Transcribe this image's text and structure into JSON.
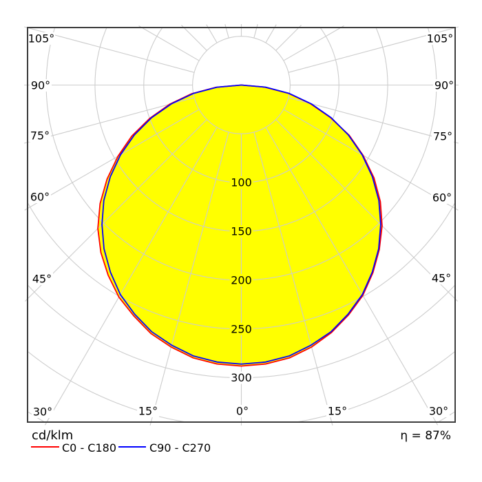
{
  "chart": {
    "unit_label": "cd/klm",
    "efficiency_text": "η = 87%",
    "colors": {
      "fill": "#ffff00",
      "grid": "#cccccc",
      "border": "#3d3d3d",
      "series_c0": "#ff0000",
      "series_c90": "#0000ff",
      "text": "#000000",
      "background": "#ffffff"
    },
    "angle_labels": [
      {
        "id": "left-105",
        "text": "105°"
      },
      {
        "id": "left-90",
        "text": "90°"
      },
      {
        "id": "left-75",
        "text": "75°"
      },
      {
        "id": "left-60",
        "text": "60°"
      },
      {
        "id": "left-45",
        "text": "45°"
      },
      {
        "id": "left-30",
        "text": "30°"
      },
      {
        "id": "bottom-left-15",
        "text": "15°"
      },
      {
        "id": "bottom-0",
        "text": "0°"
      },
      {
        "id": "bottom-right-15",
        "text": "15°"
      },
      {
        "id": "right-30",
        "text": "30°"
      },
      {
        "id": "right-45",
        "text": "45°"
      },
      {
        "id": "right-60",
        "text": "60°"
      },
      {
        "id": "right-75",
        "text": "75°"
      },
      {
        "id": "right-90",
        "text": "90°"
      },
      {
        "id": "right-105",
        "text": "105°"
      }
    ],
    "ring_labels": [
      {
        "value": 100,
        "text": "100",
        "bg": "#ffff00"
      },
      {
        "value": 150,
        "text": "150",
        "bg": "#ffff00"
      },
      {
        "value": 200,
        "text": "200",
        "bg": "#ffff00"
      },
      {
        "value": 250,
        "text": "250",
        "bg": "#ffff00"
      },
      {
        "value": 300,
        "text": "300",
        "bg": "#ffffff"
      }
    ]
  },
  "legend": {
    "unit": "cd/klm",
    "entries": [
      {
        "label": "C0 - C180",
        "color": "#ff0000"
      },
      {
        "label": "C90 - C270",
        "color": "#0000ff"
      }
    ]
  },
  "chart_data": {
    "type": "line",
    "subtype": "polar-photometric",
    "radial_unit": "cd/klm",
    "efficiency": "87%",
    "gamma_start_deg": -105,
    "gamma_step_deg": 5,
    "angle_grid_step_deg": 15,
    "angle_label_range_deg": [
      0,
      105
    ],
    "radial_grid_rings": [
      50,
      100,
      150,
      200,
      250,
      300,
      350,
      400
    ],
    "labeled_rings": [
      100,
      150,
      200,
      250,
      300
    ],
    "fill_color": "#ffff00",
    "series": [
      {
        "name": "C0 - C180",
        "color": "#ff0000",
        "values": [
          0,
          0,
          0,
          0,
          26,
          52,
          76,
          100,
          124,
          146,
          168,
          189,
          208,
          224,
          238,
          251,
          261,
          271,
          278,
          284,
          287,
          288,
          287,
          284,
          278,
          270,
          260,
          249,
          235,
          220,
          204,
          186,
          166,
          144,
          122,
          97,
          73,
          49,
          24,
          0,
          0,
          0,
          0
        ]
      },
      {
        "name": "C90 - C270",
        "color": "#0000ff",
        "values": [
          0,
          0,
          0,
          0,
          25,
          50,
          74,
          98,
          121,
          143,
          164,
          184,
          202,
          219,
          234,
          248,
          259,
          269,
          276,
          282,
          285,
          286,
          285,
          282,
          276,
          269,
          259,
          248,
          234,
          219,
          202,
          184,
          164,
          143,
          121,
          98,
          74,
          50,
          25,
          0,
          0,
          0,
          0
        ]
      }
    ]
  }
}
